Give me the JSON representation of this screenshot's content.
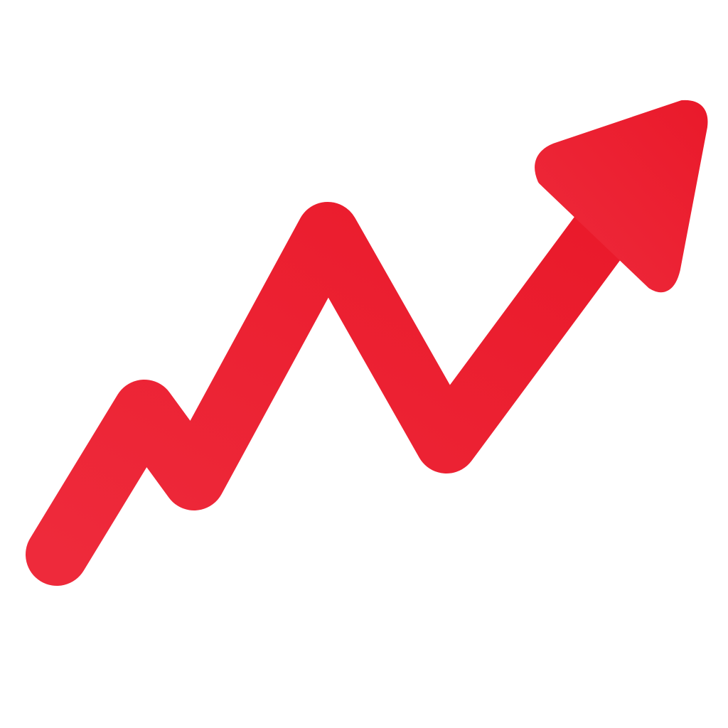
{
  "icon": {
    "name": "trending-up-arrow-icon",
    "colors": {
      "background": "#ffffff",
      "stroke_start": "#ee2a3b",
      "stroke_end": "#ea1a2b",
      "highlight": "#f0303f"
    }
  }
}
